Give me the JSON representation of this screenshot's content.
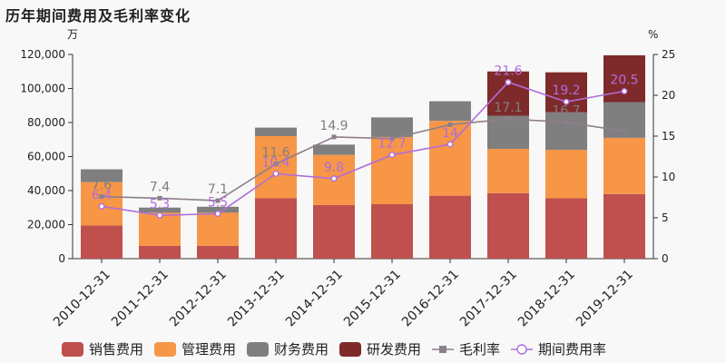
{
  "title": "历年期间费用及毛利率变化",
  "chart_data": {
    "type": "bar",
    "stacked": true,
    "title": "历年期间费用及毛利率变化",
    "categories": [
      "2010-12-31",
      "2011-12-31",
      "2012-12-31",
      "2013-12-31",
      "2014-12-31",
      "2015-12-31",
      "2016-12-31",
      "2017-12-31",
      "2018-12-31",
      "2019-12-31"
    ],
    "y_left": {
      "unit": "万",
      "ylim": [
        0,
        120000
      ],
      "ticks": [
        0,
        20000,
        40000,
        60000,
        80000,
        100000,
        120000
      ],
      "tick_labels": [
        "0",
        "20,000",
        "40,000",
        "60,000",
        "80,000",
        "100,000",
        "120,000"
      ]
    },
    "y_right": {
      "unit": "%",
      "ylim": [
        0,
        25
      ],
      "ticks": [
        0,
        5,
        10,
        15,
        20,
        25
      ],
      "tick_labels": [
        "0",
        "5",
        "10",
        "15",
        "20",
        "25"
      ]
    },
    "grid": false,
    "legend_position": "bottom",
    "series": [
      {
        "name": "销售费用",
        "type": "bar",
        "axis": "left",
        "color": "#c0504d",
        "values": [
          19500,
          7500,
          7500,
          35500,
          31500,
          32000,
          37000,
          38500,
          35500,
          38000
        ]
      },
      {
        "name": "管理费用",
        "type": "bar",
        "axis": "left",
        "color": "#f79646",
        "values": [
          25500,
          19500,
          19500,
          36500,
          29500,
          39500,
          44000,
          26000,
          28500,
          33000
        ]
      },
      {
        "name": "财务费用",
        "type": "bar",
        "axis": "left",
        "color": "#7f7f7f",
        "values": [
          7500,
          3000,
          3500,
          5000,
          6000,
          11500,
          11500,
          19500,
          22000,
          21000
        ]
      },
      {
        "name": "研发费用",
        "type": "bar",
        "axis": "left",
        "color": "#7f2a2a",
        "values": [
          0,
          0,
          0,
          0,
          0,
          0,
          0,
          26000,
          23500,
          27500
        ]
      },
      {
        "name": "毛利率",
        "type": "line",
        "axis": "right",
        "color": "#8c7f8c",
        "marker": "square",
        "values": [
          7.6,
          7.4,
          7.1,
          11.6,
          14.9,
          14.7,
          16.4,
          17.1,
          16.7,
          15.6
        ],
        "labels": [
          "7.6",
          "7.4",
          "7.1",
          "11.6",
          "14.9",
          "14.7",
          "16.4",
          "17.1",
          "16.7",
          "15.6"
        ]
      },
      {
        "name": "期间费用率",
        "type": "line",
        "axis": "right",
        "color": "#b06ddc",
        "marker": "circle",
        "values": [
          6.4,
          5.3,
          5.5,
          10.4,
          9.8,
          12.7,
          14.0,
          21.6,
          19.2,
          20.5
        ],
        "labels": [
          "6.4",
          "5.3",
          "5.5",
          "10.4",
          "9.8",
          "12.7",
          "14",
          "21.6",
          "19.2",
          "20.5"
        ]
      }
    ]
  }
}
